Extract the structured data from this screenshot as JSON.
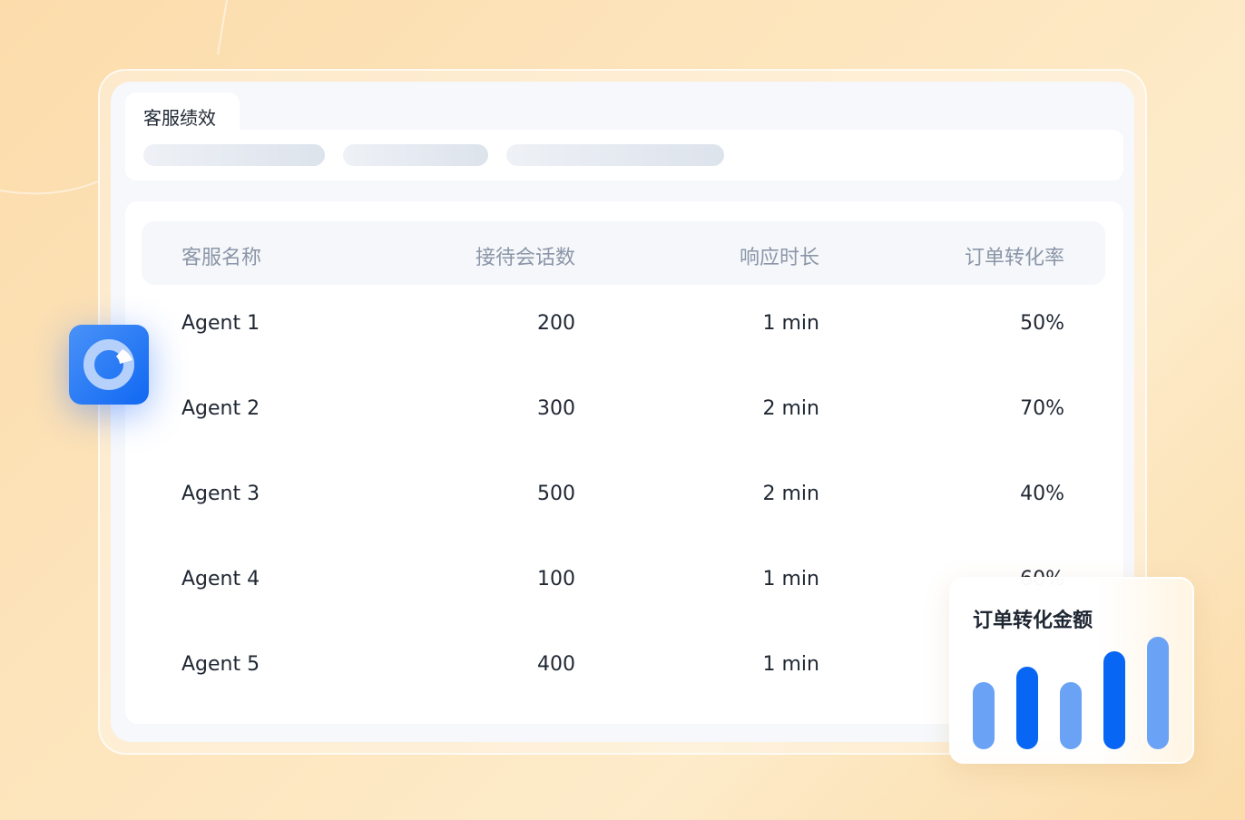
{
  "tab": {
    "title": "客服绩效"
  },
  "table": {
    "headers": [
      "客服名称",
      "接待会话数",
      "响应时长",
      "订单转化率"
    ],
    "rows": [
      [
        "Agent 1",
        "200",
        "1 min",
        "50%"
      ],
      [
        "Agent 2",
        "300",
        "2 min",
        "70%"
      ],
      [
        "Agent 3",
        "500",
        "2 min",
        "40%"
      ],
      [
        "Agent 4",
        "100",
        "1 min",
        "60%"
      ],
      [
        "Agent 5",
        "400",
        "1 min",
        ""
      ]
    ]
  },
  "app_icon": "donut-chart-icon",
  "chart_data": {
    "type": "bar",
    "title": "订单转化金额",
    "values": [
      0.6,
      0.73,
      0.6,
      0.87,
      1.0
    ],
    "colors": [
      "#6aa2f5",
      "#0766f3",
      "#6aa2f5",
      "#0766f3",
      "#6aa2f5"
    ],
    "grid": false
  }
}
